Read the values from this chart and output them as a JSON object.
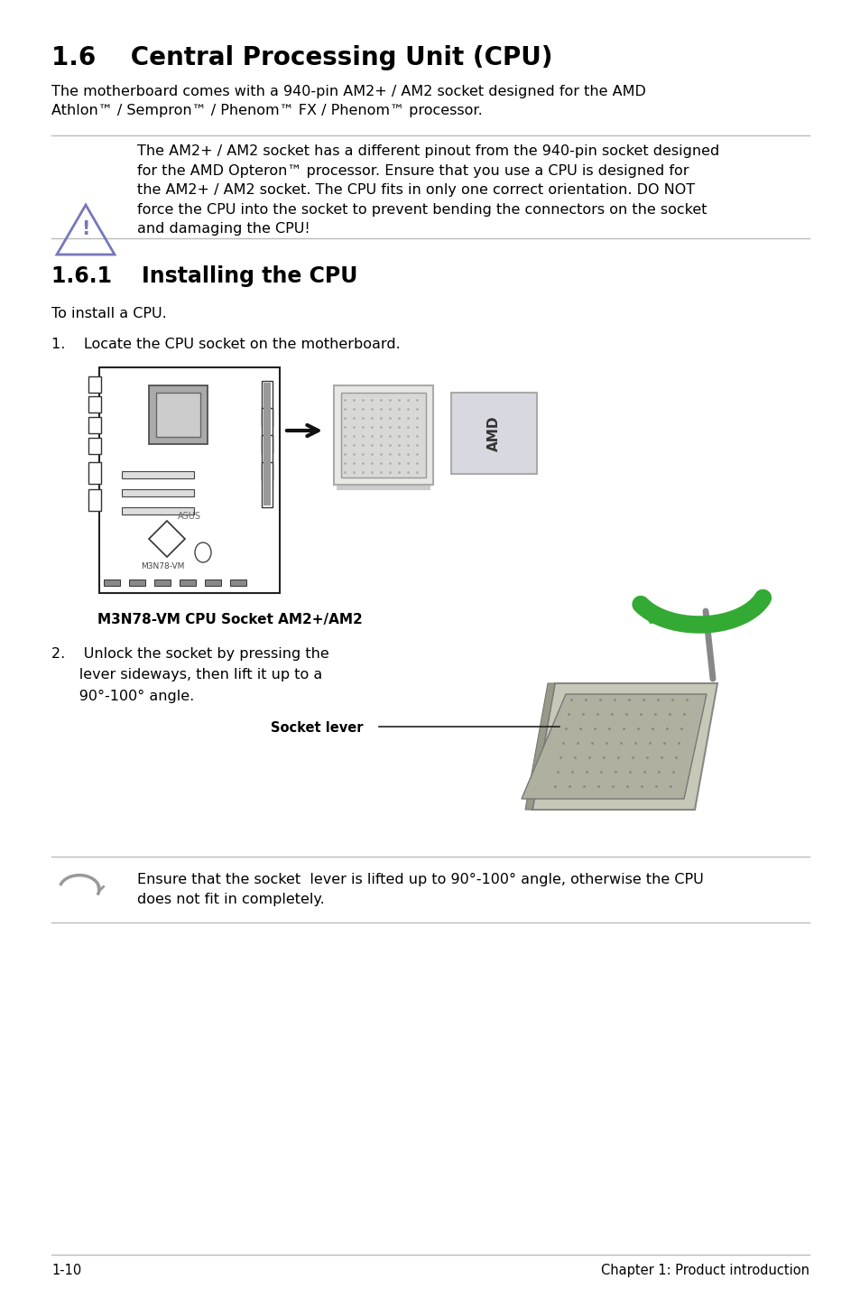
{
  "bg_color": "#ffffff",
  "title": "1.6    Central Processing Unit (CPU)",
  "title_fontsize": 20,
  "body_text_1": "The motherboard comes with a 940-pin AM2+ / AM2 socket designed for the AMD\nAthlon™ / Sempron™ / Phenom™ FX / Phenom™ processor.",
  "warning_text": "The AM2+ / AM2 socket has a different pinout from the 940-pin socket designed\nfor the AMD Opteron™ processor. Ensure that you use a CPU is designed for\nthe AM2+ / AM2 socket. The CPU fits in only one correct orientation. DO NOT\nforce the CPU into the socket to prevent bending the connectors on the socket\nand damaging the CPU!",
  "section_161": "1.6.1    Installing the CPU",
  "section_161_fontsize": 17,
  "to_install": "To install a CPU.",
  "step1": "1.    Locate the CPU socket on the motherboard.",
  "step2_text": "2.    Unlock the socket by pressing the\n      lever sideways, then lift it up to a\n      90°-100° angle.",
  "socket_lever_label": "Socket lever",
  "mb_caption": "M3N78-VM CPU Socket AM2+/AM2",
  "footer_left": "1-10",
  "footer_right": "Chapter 1: Product introduction",
  "note_text": "Ensure that the socket  lever is lifted up to 90°-100° angle, otherwise the CPU\ndoes not fit in completely.",
  "line_color": "#bbbbbb",
  "text_color": "#000000",
  "font_size_body": 11.5,
  "font_size_footer": 10.5
}
